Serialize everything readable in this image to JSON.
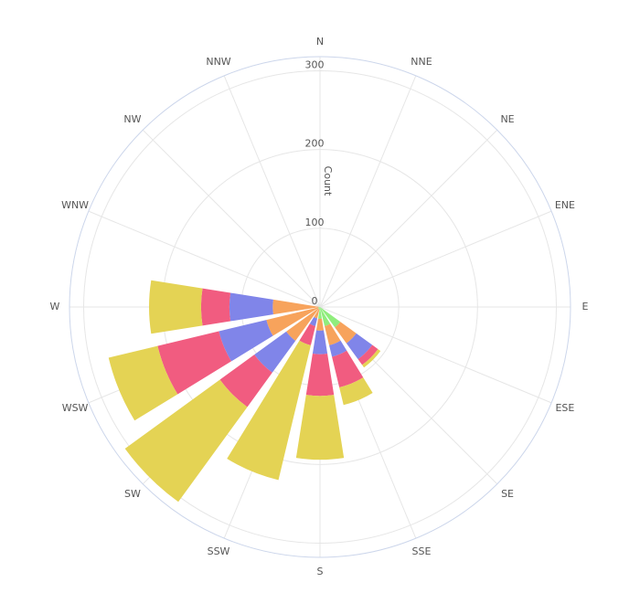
{
  "chart_data": {
    "type": "windrose",
    "categories": [
      "N",
      "NNE",
      "NE",
      "ENE",
      "E",
      "ESE",
      "SE",
      "SSE",
      "S",
      "SSW",
      "SW",
      "WSW",
      "W",
      "WNW",
      "NW",
      "NNW"
    ],
    "rlim": [
      0,
      318
    ],
    "rticks": [
      0,
      100,
      200,
      300
    ],
    "r_label": "Count",
    "grid": true,
    "series": [
      {
        "color": "#90ed7d",
        "values": [
          0,
          0,
          0,
          0,
          0,
          0,
          32,
          25,
          15,
          3,
          3,
          2,
          2,
          0,
          0,
          0
        ]
      },
      {
        "color": "#f7a35c",
        "values": [
          0,
          0,
          0,
          0,
          0,
          0,
          25,
          25,
          15,
          12,
          50,
          68,
          58,
          0,
          0,
          0
        ]
      },
      {
        "color": "#8085e9",
        "values": [
          0,
          0,
          0,
          0,
          0,
          0,
          25,
          15,
          30,
          10,
          50,
          62,
          55,
          0,
          0,
          0
        ]
      },
      {
        "color": "#f15c80",
        "values": [
          0,
          0,
          0,
          0,
          0,
          0,
          9,
          40,
          53,
          25,
          54,
          80,
          36,
          0,
          0,
          0
        ]
      },
      {
        "color": "#e4d354",
        "values": [
          0,
          0,
          0,
          0,
          0,
          0,
          4,
          23,
          81,
          176,
          149,
          64,
          66,
          0,
          0,
          0
        ]
      }
    ]
  }
}
